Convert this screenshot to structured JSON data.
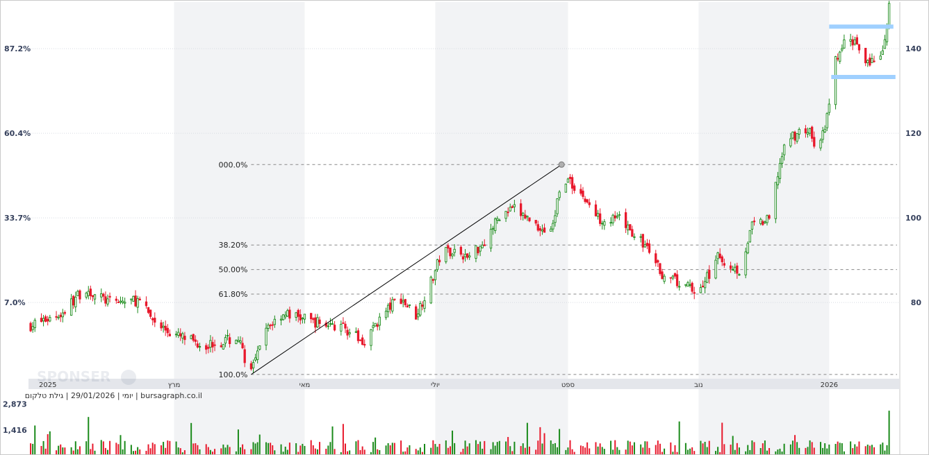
{
  "chart_data": {
    "type": "candlestick",
    "title": "",
    "caption": "יומי | 29/01/2026 | גילת טלקום | bursagraph.co.il",
    "watermark": "SPONSER",
    "x_axis": {
      "type": "date",
      "range": [
        "2024-12-23",
        "2026-02-03"
      ],
      "tick_labels": [
        {
          "date": "2025-01-01",
          "label": "2025"
        },
        {
          "date": "2025-03-01",
          "label": "מרץ"
        },
        {
          "date": "2025-05-01",
          "label": "מאי"
        },
        {
          "date": "2025-07-01",
          "label": "יולי"
        },
        {
          "date": "2025-09-01",
          "label": "ספט"
        },
        {
          "date": "2025-11-01",
          "label": "נוב"
        },
        {
          "date": "2026-01-01",
          "label": "2026"
        }
      ]
    },
    "y_axis_right": {
      "ticks": [
        80,
        100,
        120,
        140
      ],
      "ylim": [
        62,
        151
      ]
    },
    "y_axis_left": {
      "ticks": [
        "7.0%",
        "33.7%",
        "60.4%",
        "87.2%"
      ]
    },
    "fibonacci": {
      "start": {
        "date": "2025-04-06",
        "value": 63.0
      },
      "end": {
        "date": "2025-08-29",
        "value": 112.6
      },
      "levels": [
        {
          "label": "000.0%",
          "value": 112.6
        },
        {
          "label": "38.20%",
          "value": 93.6
        },
        {
          "label": "50.00%",
          "value": 87.8
        },
        {
          "label": "61.80%",
          "value": 82.0
        },
        {
          "label": "100.0%",
          "value": 63.0
        }
      ]
    },
    "channel": {
      "start": "2026-01-01",
      "end": "2026-01-31",
      "upper": 145.2,
      "lower": 133.3
    },
    "colors": {
      "up": "#1a8a1a",
      "down": "#e8192c",
      "fib_line": "#888888",
      "trend_line": "#000000",
      "channel": "#9fd0ff",
      "band": "#f2f3f5",
      "axis_text": "#35405c"
    },
    "price_anchors": [
      {
        "date": "2024-12-24",
        "close": 74.6
      },
      {
        "date": "2025-01-08",
        "close": 77.5
      },
      {
        "date": "2025-01-13",
        "close": 80.5
      },
      {
        "date": "2025-01-18",
        "close": 83.2
      },
      {
        "date": "2025-01-30",
        "close": 80.0
      },
      {
        "date": "2025-02-12",
        "close": 80.5
      },
      {
        "date": "2025-02-20",
        "close": 75.5
      },
      {
        "date": "2025-02-28",
        "close": 72.5
      },
      {
        "date": "2025-03-15",
        "close": 70.0
      },
      {
        "date": "2025-03-31",
        "close": 71.5
      },
      {
        "date": "2025-04-03",
        "close": 67.0
      },
      {
        "date": "2025-04-06",
        "close": 63.5
      },
      {
        "date": "2025-04-14",
        "close": 74.5
      },
      {
        "date": "2025-04-21",
        "close": 77.5
      },
      {
        "date": "2025-05-05",
        "close": 75.5
      },
      {
        "date": "2025-05-20",
        "close": 74.0
      },
      {
        "date": "2025-05-28",
        "close": 70.5
      },
      {
        "date": "2025-06-05",
        "close": 76.0
      },
      {
        "date": "2025-06-14",
        "close": 81.5
      },
      {
        "date": "2025-06-22",
        "close": 77.0
      },
      {
        "date": "2025-06-30",
        "close": 86.0
      },
      {
        "date": "2025-07-04",
        "close": 92.0
      },
      {
        "date": "2025-07-11",
        "close": 92.5
      },
      {
        "date": "2025-07-16",
        "close": 90.5
      },
      {
        "date": "2025-07-24",
        "close": 94.5
      },
      {
        "date": "2025-07-31",
        "close": 100.5
      },
      {
        "date": "2025-08-07",
        "close": 102.0
      },
      {
        "date": "2025-08-17",
        "close": 98.5
      },
      {
        "date": "2025-08-21",
        "close": 97.0
      },
      {
        "date": "2025-08-25",
        "close": 98.0
      },
      {
        "date": "2025-08-29",
        "close": 110.0
      },
      {
        "date": "2025-09-06",
        "close": 106.5
      },
      {
        "date": "2025-09-15",
        "close": 100.0
      },
      {
        "date": "2025-09-25",
        "close": 99.5
      },
      {
        "date": "2025-10-07",
        "close": 93.5
      },
      {
        "date": "2025-10-16",
        "close": 86.0
      },
      {
        "date": "2025-10-23",
        "close": 84.5
      },
      {
        "date": "2025-11-01",
        "close": 82.5
      },
      {
        "date": "2025-11-10",
        "close": 90.5
      },
      {
        "date": "2025-11-20",
        "close": 87.5
      },
      {
        "date": "2025-11-26",
        "close": 98.0
      },
      {
        "date": "2025-12-04",
        "close": 99.5
      },
      {
        "date": "2025-12-09",
        "close": 113.0
      },
      {
        "date": "2025-12-13",
        "close": 119.0
      },
      {
        "date": "2025-12-22",
        "close": 121.0
      },
      {
        "date": "2025-12-27",
        "close": 115.5
      },
      {
        "date": "2026-01-01",
        "close": 126.0
      },
      {
        "date": "2026-01-03",
        "close": 136.0
      },
      {
        "date": "2026-01-08",
        "close": 141.0
      },
      {
        "date": "2026-01-13",
        "close": 142.0
      },
      {
        "date": "2026-01-19",
        "close": 137.0
      },
      {
        "date": "2026-01-25",
        "close": 137.0
      },
      {
        "date": "2026-01-26",
        "close": 140.0
      },
      {
        "date": "2026-01-28",
        "close": 144.5
      },
      {
        "date": "2026-01-29",
        "close": 150.0
      }
    ],
    "volume": {
      "ticks": [
        1416,
        2873
      ]
    }
  }
}
